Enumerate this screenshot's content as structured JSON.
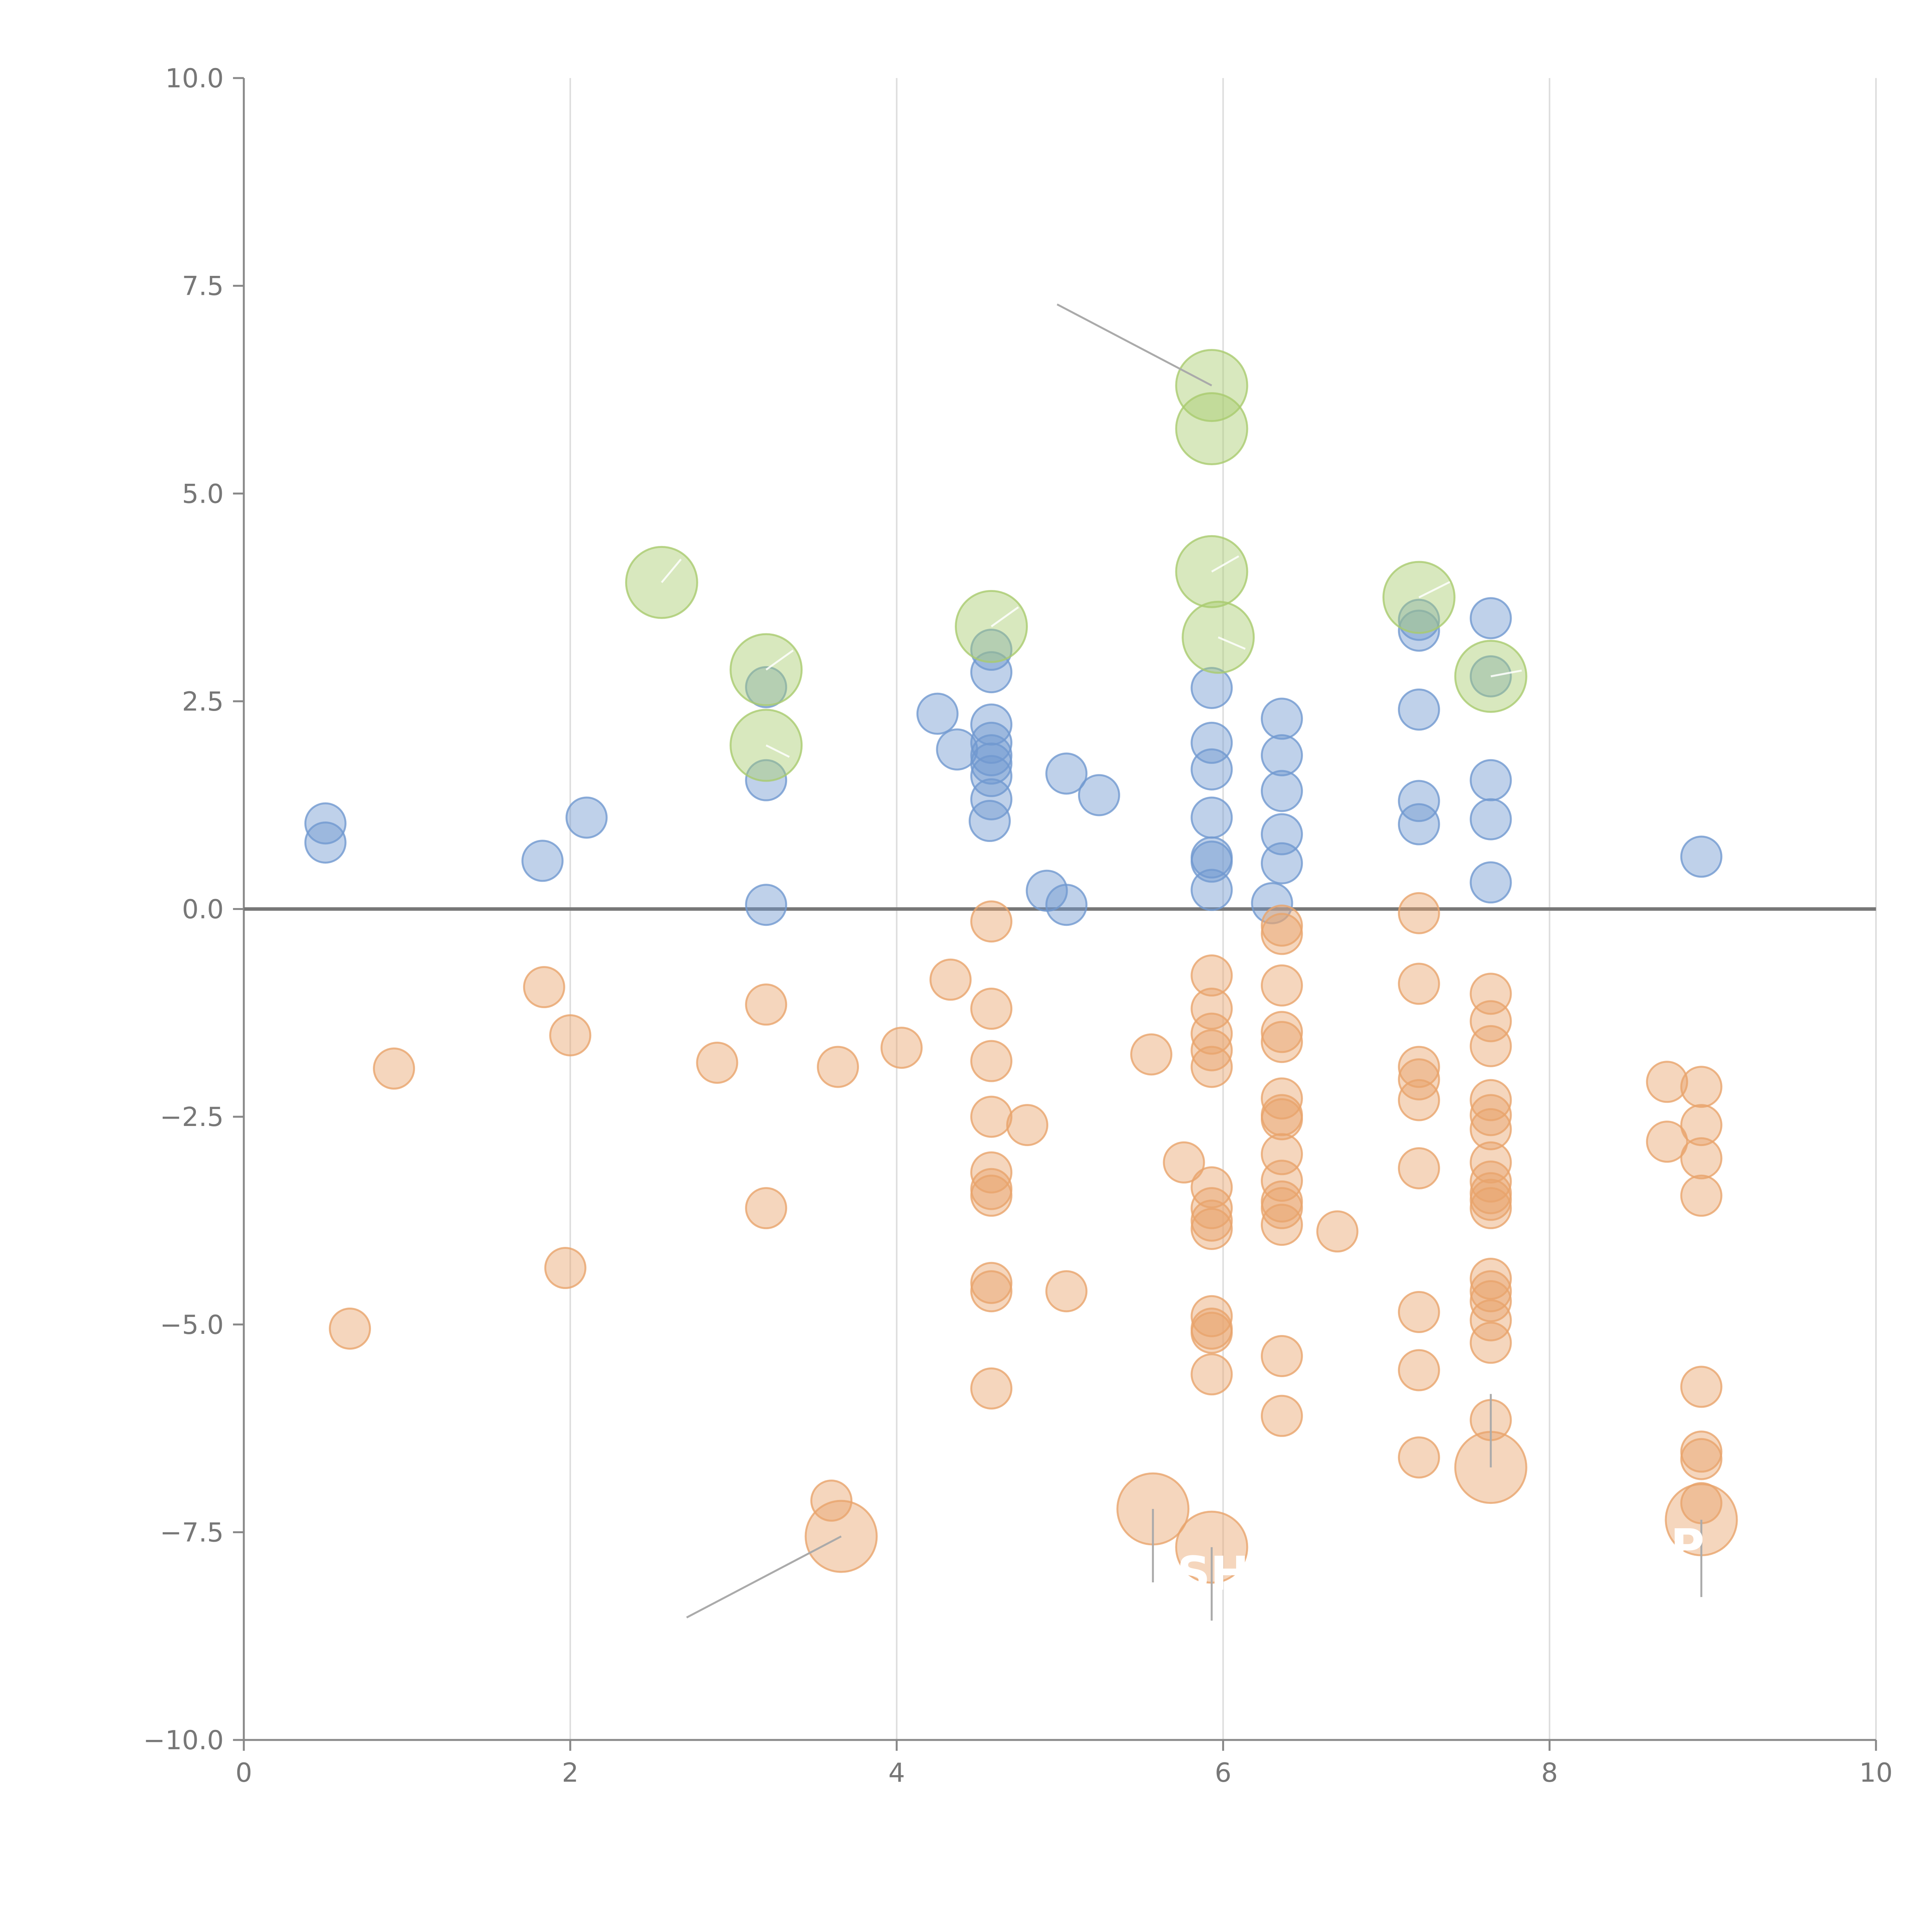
{
  "chart_data": {
    "type": "scatter",
    "title": "",
    "xlabel": "",
    "ylabel": "",
    "xlim": [
      0,
      10
    ],
    "ylim": [
      -10,
      10
    ],
    "grid": "vertical",
    "xticks": [
      "0",
      "2",
      "4",
      "6",
      "8",
      "10"
    ],
    "yticks": [
      "10.0",
      "7.5",
      "5.0",
      "2.5",
      "0.0",
      "−2.5",
      "−5.0",
      "−7.5",
      "−10.0"
    ],
    "colors": {
      "positive": "#7099d0",
      "negative": "#e8a46c",
      "highlight": "#a9cb6e"
    },
    "series": [
      {
        "name": "positive",
        "color": "#7099d0",
        "size": "small",
        "points": [
          [
            0.5,
            1.03
          ],
          [
            0.5,
            0.8
          ],
          [
            1.83,
            0.58
          ],
          [
            2.1,
            1.1
          ],
          [
            3.2,
            2.67
          ],
          [
            3.2,
            1.55
          ],
          [
            3.2,
            0.05
          ],
          [
            4.25,
            2.35
          ],
          [
            4.37,
            1.92
          ],
          [
            4.58,
            3.12
          ],
          [
            4.58,
            2.85
          ],
          [
            4.58,
            2.22
          ],
          [
            4.58,
            2.0
          ],
          [
            4.58,
            1.85
          ],
          [
            4.58,
            1.75
          ],
          [
            4.58,
            1.6
          ],
          [
            4.58,
            1.32
          ],
          [
            4.57,
            1.06
          ],
          [
            4.92,
            0.22
          ],
          [
            5.04,
            0.05
          ],
          [
            5.04,
            1.63
          ],
          [
            5.24,
            1.37
          ],
          [
            5.93,
            2.66
          ],
          [
            5.93,
            2.0
          ],
          [
            5.93,
            1.68
          ],
          [
            5.93,
            1.1
          ],
          [
            5.93,
            0.62
          ],
          [
            5.93,
            0.57
          ],
          [
            5.93,
            0.23
          ],
          [
            6.3,
            0.07
          ],
          [
            6.36,
            2.29
          ],
          [
            6.36,
            1.85
          ],
          [
            6.36,
            1.42
          ],
          [
            6.36,
            0.9
          ],
          [
            6.36,
            0.55
          ],
          [
            7.2,
            3.48
          ],
          [
            7.2,
            3.35
          ],
          [
            7.2,
            2.4
          ],
          [
            7.2,
            1.3
          ],
          [
            7.2,
            1.02
          ],
          [
            7.64,
            3.5
          ],
          [
            7.64,
            2.8
          ],
          [
            7.64,
            1.55
          ],
          [
            7.64,
            1.08
          ],
          [
            7.64,
            0.32
          ],
          [
            8.93,
            0.63
          ]
        ]
      },
      {
        "name": "negative",
        "color": "#e8a46c",
        "size": "small",
        "points": [
          [
            0.92,
            -1.92
          ],
          [
            0.65,
            -5.05
          ],
          [
            1.84,
            -0.94
          ],
          [
            2.0,
            -1.52
          ],
          [
            1.97,
            -4.32
          ],
          [
            2.9,
            -1.85
          ],
          [
            3.2,
            -1.15
          ],
          [
            3.2,
            -3.6
          ],
          [
            3.6,
            -7.12
          ],
          [
            3.64,
            -1.9
          ],
          [
            4.03,
            -1.67
          ],
          [
            4.33,
            -0.85
          ],
          [
            4.58,
            -0.15
          ],
          [
            4.58,
            -1.2
          ],
          [
            4.58,
            -1.83
          ],
          [
            4.58,
            -2.5
          ],
          [
            4.58,
            -3.17
          ],
          [
            4.58,
            -3.37
          ],
          [
            4.58,
            -3.45
          ],
          [
            4.58,
            -4.5
          ],
          [
            4.58,
            -4.6
          ],
          [
            4.58,
            -5.77
          ],
          [
            4.8,
            -2.6
          ],
          [
            5.04,
            -4.6
          ],
          [
            5.56,
            -1.75
          ],
          [
            5.76,
            -3.05
          ],
          [
            5.93,
            -0.8
          ],
          [
            5.93,
            -1.2
          ],
          [
            5.93,
            -1.5
          ],
          [
            5.93,
            -1.7
          ],
          [
            5.93,
            -1.9
          ],
          [
            5.93,
            -3.35
          ],
          [
            5.93,
            -3.6
          ],
          [
            5.93,
            -3.75
          ],
          [
            5.93,
            -3.85
          ],
          [
            5.93,
            -4.9
          ],
          [
            5.93,
            -5.05
          ],
          [
            5.93,
            -5.1
          ],
          [
            5.93,
            -5.6
          ],
          [
            6.36,
            -0.2
          ],
          [
            6.36,
            -0.3
          ],
          [
            6.36,
            -0.92
          ],
          [
            6.36,
            -1.48
          ],
          [
            6.36,
            -1.6
          ],
          [
            6.36,
            -2.28
          ],
          [
            6.36,
            -2.48
          ],
          [
            6.36,
            -2.53
          ],
          [
            6.36,
            -2.95
          ],
          [
            6.36,
            -3.27
          ],
          [
            6.36,
            -3.52
          ],
          [
            6.36,
            -3.6
          ],
          [
            6.36,
            -3.8
          ],
          [
            6.36,
            -5.38
          ],
          [
            6.36,
            -6.1
          ],
          [
            6.7,
            -3.88
          ],
          [
            7.2,
            -0.05
          ],
          [
            7.2,
            -0.9
          ],
          [
            7.2,
            -1.9
          ],
          [
            7.2,
            -2.05
          ],
          [
            7.2,
            -2.3
          ],
          [
            7.2,
            -3.12
          ],
          [
            7.2,
            -4.85
          ],
          [
            7.2,
            -5.55
          ],
          [
            7.2,
            -6.6
          ],
          [
            7.64,
            -1.02
          ],
          [
            7.64,
            -1.35
          ],
          [
            7.64,
            -1.65
          ],
          [
            7.64,
            -2.3
          ],
          [
            7.64,
            -2.48
          ],
          [
            7.64,
            -2.65
          ],
          [
            7.64,
            -3.05
          ],
          [
            7.64,
            -3.28
          ],
          [
            7.64,
            -3.42
          ],
          [
            7.64,
            -3.5
          ],
          [
            7.64,
            -3.6
          ],
          [
            7.64,
            -4.45
          ],
          [
            7.64,
            -4.6
          ],
          [
            7.64,
            -4.72
          ],
          [
            7.64,
            -4.95
          ],
          [
            7.64,
            -5.22
          ],
          [
            7.64,
            -6.15
          ],
          [
            8.72,
            -2.08
          ],
          [
            8.72,
            -2.8
          ],
          [
            8.93,
            -2.14
          ],
          [
            8.93,
            -2.6
          ],
          [
            8.93,
            -3.0
          ],
          [
            8.93,
            -3.45
          ],
          [
            8.93,
            -5.75
          ],
          [
            8.93,
            -6.53
          ],
          [
            8.93,
            -6.62
          ],
          [
            8.93,
            -7.15
          ]
        ]
      },
      {
        "name": "highlight-positive",
        "color": "#a9cb6e",
        "size": "large",
        "points": [
          [
            2.56,
            3.93
          ],
          [
            3.2,
            2.88
          ],
          [
            3.2,
            1.97
          ],
          [
            4.58,
            3.4
          ],
          [
            5.93,
            6.3
          ],
          [
            5.93,
            5.78
          ],
          [
            5.93,
            4.06
          ],
          [
            5.97,
            3.27
          ],
          [
            7.2,
            3.75
          ],
          [
            7.64,
            2.8
          ]
        ]
      },
      {
        "name": "highlight-negative",
        "color": "#e8a46c",
        "size": "large",
        "points": [
          [
            3.66,
            -7.55
          ],
          [
            5.57,
            -7.22
          ],
          [
            5.93,
            -7.68
          ],
          [
            7.64,
            -6.72
          ],
          [
            8.93,
            -7.35
          ]
        ]
      }
    ],
    "annotations": [
      {
        "target": [
          5.93,
          6.3
        ],
        "label": "",
        "style": "gray"
      },
      {
        "target": [
          3.66,
          -7.55
        ],
        "label": "",
        "style": "gray"
      },
      {
        "target": [
          5.57,
          -7.22
        ],
        "label": "",
        "style": "gray"
      },
      {
        "target": [
          5.93,
          -7.68
        ],
        "label": "SHI",
        "style": "gray"
      },
      {
        "target": [
          7.64,
          -6.72
        ],
        "label": "",
        "style": "gray"
      },
      {
        "target": [
          8.93,
          -7.35
        ],
        "label": "P",
        "style": "gray"
      },
      {
        "target": [
          2.56,
          3.93
        ],
        "label": "",
        "style": "white"
      },
      {
        "target": [
          3.2,
          2.88
        ],
        "label": "",
        "style": "white"
      },
      {
        "target": [
          3.2,
          1.97
        ],
        "label": "",
        "style": "white"
      },
      {
        "target": [
          4.58,
          3.4
        ],
        "label": "",
        "style": "white"
      },
      {
        "target": [
          5.93,
          4.06
        ],
        "label": "",
        "style": "white"
      },
      {
        "target": [
          5.97,
          3.27
        ],
        "label": "",
        "style": "white"
      },
      {
        "target": [
          7.2,
          3.75
        ],
        "label": "",
        "style": "white"
      },
      {
        "target": [
          7.64,
          2.8
        ],
        "label": "",
        "style": "white"
      }
    ]
  }
}
